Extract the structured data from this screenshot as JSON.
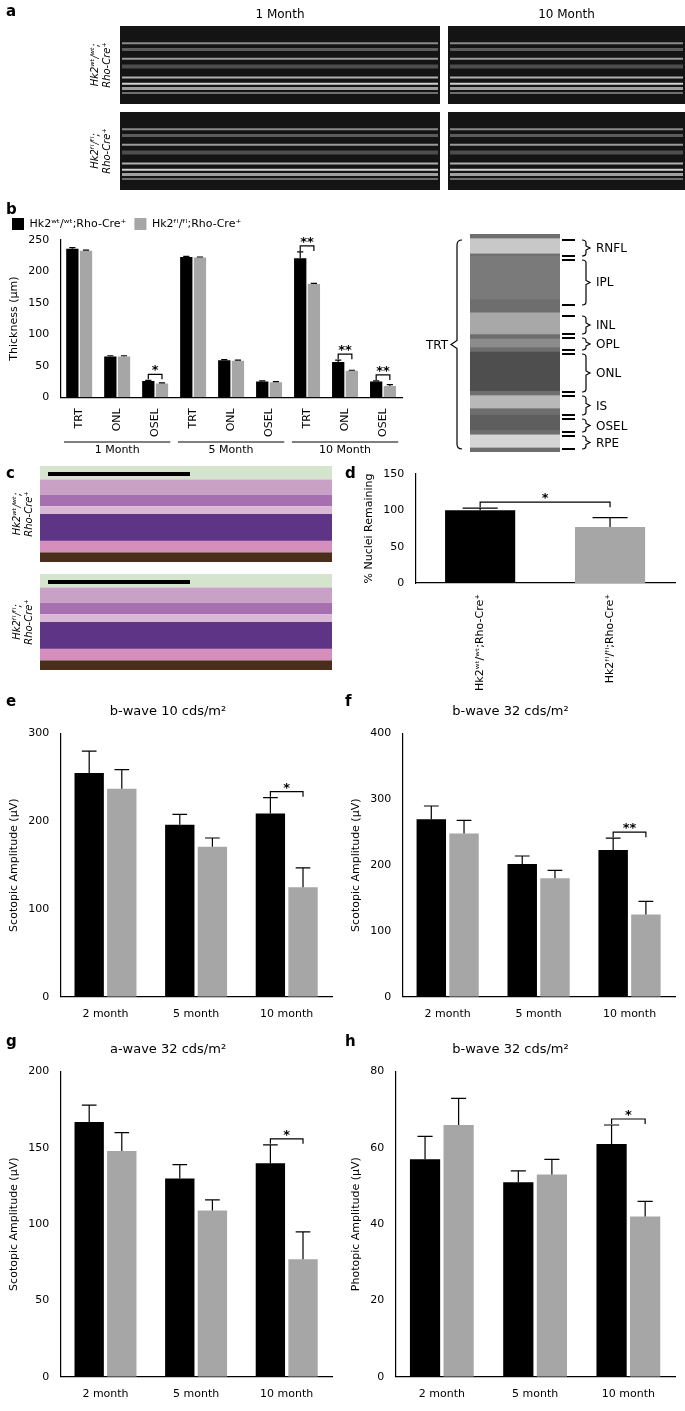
{
  "figure": {
    "panel_labels": [
      "a",
      "b",
      "c",
      "d",
      "e",
      "f",
      "g",
      "h"
    ]
  },
  "oct_images": {
    "columns": [
      "1 Month",
      "10 Month"
    ],
    "rows": [
      "Hk2ʷᵗ/ʷᵗ;Rho-Cre⁺",
      "Hk2ᶠˡ/ᶠˡ;Rho-Cre⁺"
    ]
  },
  "layer_diagram": {
    "bracket": "TRT",
    "layers": [
      "RNFL",
      "IPL",
      "INL",
      "OPL",
      "ONL",
      "IS",
      "OSEL",
      "RPE"
    ]
  },
  "histology_images": {
    "rows": [
      "Hk2ʷᵗ/ʷᵗ;Rho-Cre⁺",
      "Hk2ᶠˡ/ᶠˡ;Rho-Cre⁺"
    ]
  },
  "chart_data": [
    {
      "type": "bar",
      "categories": [
        "TRT",
        "ONL",
        "OSEL",
        "TRT",
        "ONL",
        "OSEL",
        "TRT",
        "ONL",
        "OSEL"
      ],
      "groups": [
        "1 Month",
        "5 Month",
        "10 Month"
      ],
      "y_label": "Thickness (μm)",
      "series": [
        {
          "name": "Hk2ʷᵗ/ʷᵗ;Rho-Cre⁺",
          "color": "#000000",
          "values": [
            236,
            65,
            26,
            223,
            59,
            25,
            221,
            56,
            25
          ],
          "errors": [
            2,
            1,
            1,
            1,
            1,
            1,
            10,
            3,
            1
          ]
        },
        {
          "name": "Hk2ᶠˡ/ᶠˡ;Rho-Cre⁺",
          "color": "#a6a6a6",
          "values": [
            233,
            65,
            22,
            222,
            58,
            24,
            180,
            42,
            18
          ],
          "errors": [
            1,
            1,
            1,
            1,
            1,
            1,
            1,
            1,
            2
          ]
        }
      ],
      "ylim": [
        0,
        250
      ],
      "yticks": [
        0,
        50,
        100,
        150,
        200,
        250
      ],
      "grid": false,
      "legend": "top-left",
      "significance": [
        {
          "index": 2,
          "label": "*"
        },
        {
          "index": 6,
          "label": "**"
        },
        {
          "index": 7,
          "label": "**"
        },
        {
          "index": 8,
          "label": "**"
        }
      ]
    },
    {
      "type": "bar",
      "categories": [
        "Hk2ʷᵗ/ʷᵗ;Rho-Cre⁺",
        "Hk2ᶠˡ/ᶠˡ;Rho-Cre⁺"
      ],
      "values": [
        100,
        77
      ],
      "errors": [
        3,
        13
      ],
      "colors": [
        "#000000",
        "#a6a6a6"
      ],
      "y_label": "% Nuclei Remaining",
      "ylim": [
        0,
        150
      ],
      "yticks": [
        0,
        50,
        100,
        150
      ],
      "grid": false,
      "significance": [
        {
          "between": [
            0,
            1
          ],
          "label": "*"
        }
      ]
    },
    {
      "type": "bar",
      "title": "b-wave 10 cds/m²",
      "categories": [
        "2 month",
        "5 month",
        "10 month"
      ],
      "y_label": "Scotopic Amplitude (μV)",
      "series": [
        {
          "color": "#000000",
          "values": [
            255,
            196,
            209
          ],
          "errors": [
            25,
            12,
            18
          ]
        },
        {
          "color": "#a6a6a6",
          "values": [
            237,
            171,
            125
          ],
          "errors": [
            22,
            10,
            22
          ]
        }
      ],
      "ylim": [
        0,
        300
      ],
      "yticks": [
        0,
        100,
        200,
        300
      ],
      "grid": false,
      "significance": [
        {
          "index": 2,
          "label": "*"
        }
      ]
    },
    {
      "type": "bar",
      "title": "b-wave 32 cds/m²",
      "categories": [
        "2 month",
        "5 month",
        "10 month"
      ],
      "y_label": "Scotopic Amplitude (μV)",
      "series": [
        {
          "color": "#000000",
          "values": [
            270,
            202,
            223
          ],
          "errors": [
            20,
            12,
            18
          ]
        },
        {
          "color": "#a6a6a6",
          "values": [
            248,
            180,
            125
          ],
          "errors": [
            20,
            12,
            20
          ]
        }
      ],
      "ylim": [
        0,
        400
      ],
      "yticks": [
        0,
        100,
        200,
        300,
        400
      ],
      "grid": false,
      "significance": [
        {
          "index": 2,
          "label": "**"
        }
      ]
    },
    {
      "type": "bar",
      "title": "a-wave 32 cds/m²",
      "categories": [
        "2 month",
        "5 month",
        "10 month"
      ],
      "y_label": "Scotopic Amplitude (μV)",
      "series": [
        {
          "color": "#000000",
          "values": [
            167,
            130,
            140
          ],
          "errors": [
            11,
            9,
            12
          ]
        },
        {
          "color": "#a6a6a6",
          "values": [
            148,
            109,
            77
          ],
          "errors": [
            12,
            7,
            18
          ]
        }
      ],
      "ylim": [
        0,
        200
      ],
      "yticks": [
        0,
        50,
        100,
        150,
        200
      ],
      "grid": false,
      "significance": [
        {
          "index": 2,
          "label": "*"
        }
      ]
    },
    {
      "type": "bar",
      "title": "b-wave 32 cds/m²",
      "categories": [
        "2 month",
        "5 month",
        "10 month"
      ],
      "y_label": "Photopic Amplitude (μV)",
      "series": [
        {
          "color": "#000000",
          "values": [
            57,
            51,
            61
          ],
          "errors": [
            6,
            3,
            5
          ]
        },
        {
          "color": "#a6a6a6",
          "values": [
            66,
            53,
            42
          ],
          "errors": [
            7,
            4,
            4
          ]
        }
      ],
      "ylim": [
        0,
        80
      ],
      "yticks": [
        0,
        20,
        40,
        60,
        80
      ],
      "grid": false,
      "significance": [
        {
          "index": 2,
          "label": "*"
        }
      ]
    }
  ]
}
